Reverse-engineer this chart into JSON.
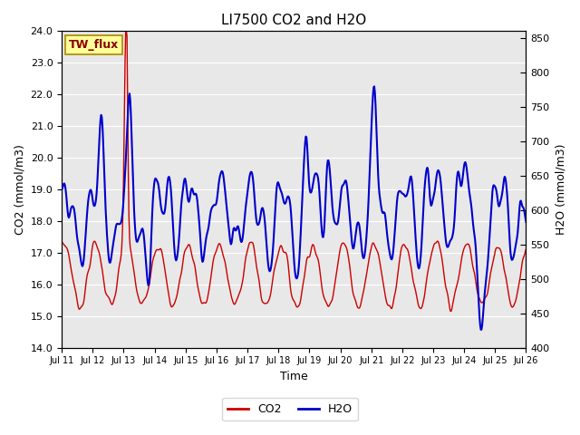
{
  "title": "LI7500 CO2 and H2O",
  "xlabel": "Time",
  "ylabel_left": "CO2 (mmol/m3)",
  "ylabel_right": "H2O (mmol/m3)",
  "ylim_left": [
    14.0,
    24.0
  ],
  "ylim_right": [
    400,
    860
  ],
  "yticks_left": [
    14.0,
    15.0,
    16.0,
    17.0,
    18.0,
    19.0,
    20.0,
    21.0,
    22.0,
    23.0,
    24.0
  ],
  "yticks_right": [
    400,
    450,
    500,
    550,
    600,
    650,
    700,
    750,
    800,
    850
  ],
  "xtick_labels": [
    "Jul 11",
    "Jul 12",
    "Jul 13",
    "Jul 14",
    "Jul 15",
    "Jul 16",
    "Jul 17",
    "Jul 18",
    "Jul 19",
    "Jul 20",
    "Jul 21",
    "Jul 22",
    "Jul 23",
    "Jul 24",
    "Jul 25",
    "Jul 26"
  ],
  "bg_color": "#e8e8e8",
  "co2_color": "#cc0000",
  "h2o_color": "#0000cc",
  "annotation_text": "TW_flux",
  "annotation_bg": "#ffff99",
  "annotation_border": "#aa8800",
  "legend_co2": "CO2",
  "legend_h2o": "H2O",
  "n_points": 720,
  "title_fontsize": 11,
  "axis_fontsize": 9,
  "tick_fontsize": 8
}
